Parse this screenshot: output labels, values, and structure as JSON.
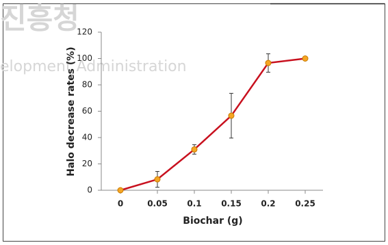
{
  "chart_data": {
    "type": "line",
    "watermark": [
      "진흥청",
      "elopment Administration"
    ],
    "xlabel": "Biochar (g)",
    "ylabel": "Halo decrease rates (%)",
    "categories": [
      "0",
      "0.05",
      "0.1",
      "0.15",
      "0.2",
      "0.25"
    ],
    "series": [
      {
        "name": "Halo decrease",
        "color": "#c8101e",
        "marker_color": "#f5a623",
        "values": [
          0,
          8.3,
          31,
          56.6,
          96.6,
          100
        ],
        "errors": [
          0,
          6,
          3.6,
          17,
          7,
          0
        ]
      }
    ],
    "ylim": [
      0,
      120
    ],
    "yticks": [
      0,
      20,
      40,
      60,
      80,
      100,
      120
    ]
  }
}
